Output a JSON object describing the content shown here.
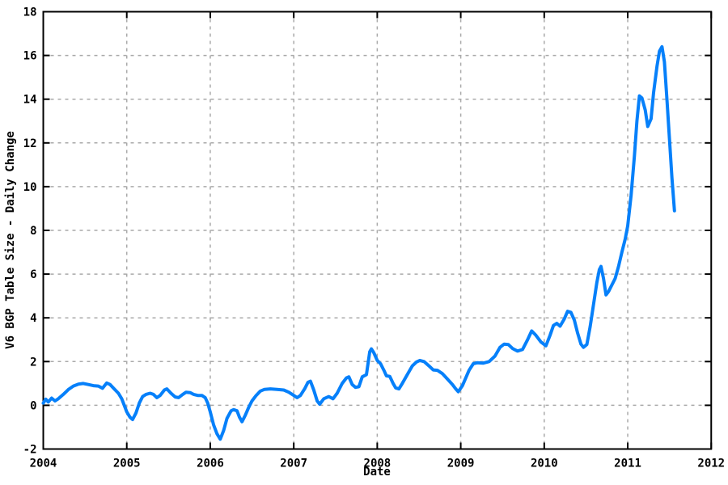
{
  "figure": {
    "background": "#FFFFFF"
  },
  "chart_data": {
    "type": "line",
    "title": "",
    "xlabel": "Date",
    "ylabel": "V6 BGP Table Size - Daily Change",
    "xlim": [
      2004,
      2012
    ],
    "ylim": [
      -2,
      18
    ],
    "x_ticks": [
      2004,
      2005,
      2006,
      2007,
      2008,
      2009,
      2010,
      2011,
      2012
    ],
    "y_ticks": [
      -2,
      0,
      2,
      4,
      6,
      8,
      10,
      12,
      14,
      16,
      18
    ],
    "grid": "dashed",
    "legend": "none",
    "line_color": "#0680FA",
    "line_width": 4,
    "grid_color": "#A9A9A9",
    "axis_color": "#000000",
    "series": [
      {
        "points": [
          [
            2004.0,
            0.1
          ],
          [
            2004.03,
            0.28
          ],
          [
            2004.06,
            0.15
          ],
          [
            2004.1,
            0.33
          ],
          [
            2004.14,
            0.2
          ],
          [
            2004.18,
            0.3
          ],
          [
            2004.24,
            0.5
          ],
          [
            2004.3,
            0.72
          ],
          [
            2004.36,
            0.88
          ],
          [
            2004.42,
            0.97
          ],
          [
            2004.48,
            1.0
          ],
          [
            2004.54,
            0.95
          ],
          [
            2004.6,
            0.9
          ],
          [
            2004.66,
            0.88
          ],
          [
            2004.71,
            0.78
          ],
          [
            2004.76,
            1.02
          ],
          [
            2004.8,
            0.95
          ],
          [
            2004.85,
            0.75
          ],
          [
            2004.9,
            0.55
          ],
          [
            2004.94,
            0.3
          ],
          [
            2004.97,
            0.0
          ],
          [
            2005.0,
            -0.3
          ],
          [
            2005.04,
            -0.55
          ],
          [
            2005.07,
            -0.65
          ],
          [
            2005.11,
            -0.35
          ],
          [
            2005.15,
            0.1
          ],
          [
            2005.19,
            0.4
          ],
          [
            2005.23,
            0.5
          ],
          [
            2005.28,
            0.55
          ],
          [
            2005.32,
            0.5
          ],
          [
            2005.36,
            0.35
          ],
          [
            2005.4,
            0.45
          ],
          [
            2005.45,
            0.7
          ],
          [
            2005.48,
            0.75
          ],
          [
            2005.53,
            0.55
          ],
          [
            2005.58,
            0.38
          ],
          [
            2005.62,
            0.35
          ],
          [
            2005.67,
            0.5
          ],
          [
            2005.71,
            0.6
          ],
          [
            2005.76,
            0.58
          ],
          [
            2005.8,
            0.5
          ],
          [
            2005.85,
            0.45
          ],
          [
            2005.9,
            0.45
          ],
          [
            2005.94,
            0.35
          ],
          [
            2005.97,
            0.1
          ],
          [
            2006.0,
            -0.3
          ],
          [
            2006.04,
            -0.9
          ],
          [
            2006.08,
            -1.3
          ],
          [
            2006.12,
            -1.55
          ],
          [
            2006.16,
            -1.15
          ],
          [
            2006.2,
            -0.6
          ],
          [
            2006.25,
            -0.25
          ],
          [
            2006.28,
            -0.2
          ],
          [
            2006.32,
            -0.25
          ],
          [
            2006.35,
            -0.55
          ],
          [
            2006.38,
            -0.75
          ],
          [
            2006.42,
            -0.45
          ],
          [
            2006.46,
            -0.1
          ],
          [
            2006.5,
            0.2
          ],
          [
            2006.55,
            0.45
          ],
          [
            2006.6,
            0.65
          ],
          [
            2006.65,
            0.73
          ],
          [
            2006.72,
            0.75
          ],
          [
            2006.8,
            0.73
          ],
          [
            2006.88,
            0.7
          ],
          [
            2006.94,
            0.6
          ],
          [
            2007.0,
            0.45
          ],
          [
            2007.04,
            0.35
          ],
          [
            2007.08,
            0.45
          ],
          [
            2007.13,
            0.75
          ],
          [
            2007.17,
            1.05
          ],
          [
            2007.2,
            1.1
          ],
          [
            2007.24,
            0.7
          ],
          [
            2007.28,
            0.2
          ],
          [
            2007.31,
            0.05
          ],
          [
            2007.36,
            0.3
          ],
          [
            2007.42,
            0.4
          ],
          [
            2007.47,
            0.3
          ],
          [
            2007.52,
            0.55
          ],
          [
            2007.58,
            1.0
          ],
          [
            2007.63,
            1.25
          ],
          [
            2007.66,
            1.3
          ],
          [
            2007.7,
            0.95
          ],
          [
            2007.74,
            0.82
          ],
          [
            2007.78,
            0.85
          ],
          [
            2007.82,
            1.3
          ],
          [
            2007.87,
            1.4
          ],
          [
            2007.91,
            2.45
          ],
          [
            2007.93,
            2.58
          ],
          [
            2007.96,
            2.4
          ],
          [
            2008.0,
            2.05
          ],
          [
            2008.04,
            1.9
          ],
          [
            2008.08,
            1.6
          ],
          [
            2008.11,
            1.35
          ],
          [
            2008.15,
            1.32
          ],
          [
            2008.19,
            1.0
          ],
          [
            2008.22,
            0.8
          ],
          [
            2008.26,
            0.75
          ],
          [
            2008.3,
            1.0
          ],
          [
            2008.36,
            1.4
          ],
          [
            2008.42,
            1.8
          ],
          [
            2008.47,
            1.98
          ],
          [
            2008.51,
            2.05
          ],
          [
            2008.56,
            2.0
          ],
          [
            2008.62,
            1.8
          ],
          [
            2008.67,
            1.62
          ],
          [
            2008.72,
            1.6
          ],
          [
            2008.78,
            1.45
          ],
          [
            2008.84,
            1.2
          ],
          [
            2008.9,
            0.95
          ],
          [
            2008.94,
            0.75
          ],
          [
            2008.97,
            0.62
          ],
          [
            2009.02,
            0.9
          ],
          [
            2009.06,
            1.25
          ],
          [
            2009.1,
            1.6
          ],
          [
            2009.15,
            1.9
          ],
          [
            2009.2,
            1.95
          ],
          [
            2009.27,
            1.93
          ],
          [
            2009.34,
            2.0
          ],
          [
            2009.41,
            2.25
          ],
          [
            2009.47,
            2.65
          ],
          [
            2009.52,
            2.8
          ],
          [
            2009.57,
            2.78
          ],
          [
            2009.62,
            2.6
          ],
          [
            2009.68,
            2.48
          ],
          [
            2009.74,
            2.55
          ],
          [
            2009.8,
            3.0
          ],
          [
            2009.85,
            3.4
          ],
          [
            2009.9,
            3.2
          ],
          [
            2009.96,
            2.9
          ],
          [
            2010.02,
            2.72
          ],
          [
            2010.07,
            3.2
          ],
          [
            2010.11,
            3.65
          ],
          [
            2010.15,
            3.75
          ],
          [
            2010.19,
            3.62
          ],
          [
            2010.24,
            3.95
          ],
          [
            2010.28,
            4.3
          ],
          [
            2010.32,
            4.25
          ],
          [
            2010.36,
            3.9
          ],
          [
            2010.4,
            3.3
          ],
          [
            2010.44,
            2.8
          ],
          [
            2010.47,
            2.65
          ],
          [
            2010.51,
            2.78
          ],
          [
            2010.55,
            3.6
          ],
          [
            2010.59,
            4.6
          ],
          [
            2010.63,
            5.6
          ],
          [
            2010.66,
            6.2
          ],
          [
            2010.68,
            6.35
          ],
          [
            2010.71,
            5.8
          ],
          [
            2010.74,
            5.05
          ],
          [
            2010.77,
            5.2
          ],
          [
            2010.81,
            5.5
          ],
          [
            2010.85,
            5.8
          ],
          [
            2010.89,
            6.35
          ],
          [
            2010.93,
            7.0
          ],
          [
            2010.97,
            7.6
          ],
          [
            2011.0,
            8.2
          ],
          [
            2011.04,
            9.6
          ],
          [
            2011.08,
            11.4
          ],
          [
            2011.11,
            13.0
          ],
          [
            2011.14,
            14.15
          ],
          [
            2011.17,
            14.05
          ],
          [
            2011.21,
            13.5
          ],
          [
            2011.24,
            12.75
          ],
          [
            2011.28,
            13.1
          ],
          [
            2011.31,
            14.3
          ],
          [
            2011.35,
            15.5
          ],
          [
            2011.38,
            16.2
          ],
          [
            2011.41,
            16.4
          ],
          [
            2011.44,
            15.7
          ],
          [
            2011.47,
            14.0
          ],
          [
            2011.5,
            12.2
          ],
          [
            2011.53,
            10.4
          ],
          [
            2011.56,
            8.9
          ]
        ]
      }
    ]
  }
}
